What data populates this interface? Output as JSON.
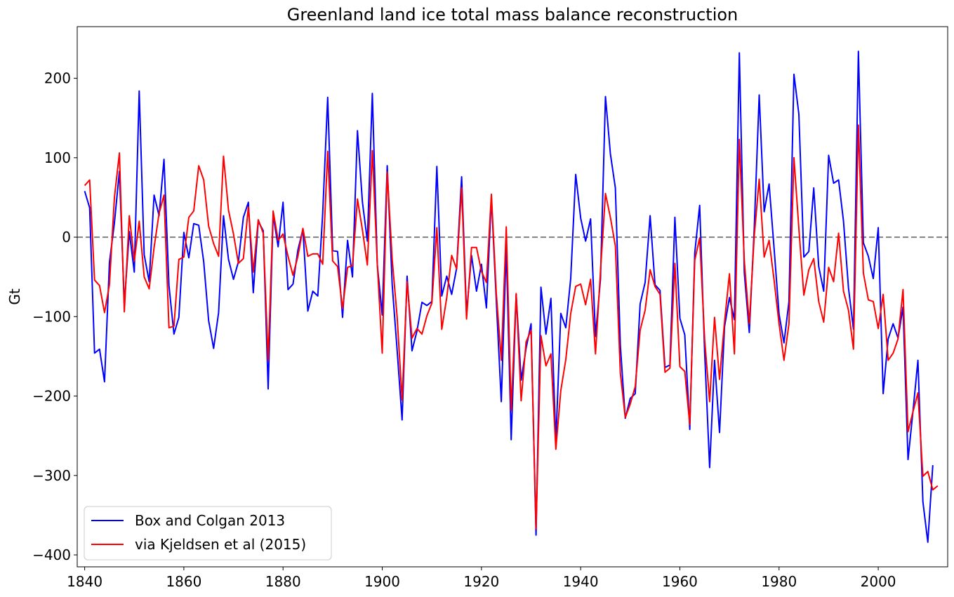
{
  "chart_data": {
    "type": "line",
    "title": "Greenland land ice total mass balance reconstruction",
    "xlabel": "",
    "ylabel": "Gt",
    "xlim": [
      1838.5,
      2014
    ],
    "ylim": [
      -415,
      265
    ],
    "xticks": [
      1840,
      1860,
      1880,
      1900,
      1920,
      1940,
      1960,
      1980,
      2000
    ],
    "yticks": [
      200,
      100,
      0,
      -100,
      -200,
      -300,
      -400
    ],
    "ytick_labels": [
      "200",
      "100",
      "0",
      "−100",
      "−200",
      "−300",
      "−400"
    ],
    "grid": false,
    "legend": "lower-left",
    "reference_line": {
      "y": 0,
      "style": "dashed",
      "color": "#808080"
    },
    "series": [
      {
        "name": "Box and Colgan 2013",
        "color": "#0000ff",
        "x_start": 1840,
        "values": [
          58,
          37,
          -146,
          -141,
          -182,
          -32,
          18,
          83,
          -85,
          7,
          -44,
          184,
          -22,
          -56,
          53,
          27,
          98,
          -61,
          -122,
          -101,
          6,
          -26,
          17,
          15,
          -31,
          -105,
          -140,
          -95,
          27,
          -28,
          -53,
          -31,
          25,
          44,
          -70,
          20,
          8,
          -191,
          28,
          -12,
          44,
          -66,
          -59,
          -16,
          10,
          -93,
          -68,
          -74,
          30,
          176,
          -17,
          -18,
          -101,
          -4,
          -50,
          134,
          44,
          -5,
          181,
          -35,
          -98,
          90,
          -60,
          -142,
          -230,
          -49,
          -143,
          -118,
          -82,
          -86,
          -81,
          89,
          -74,
          -49,
          -72,
          -39,
          76,
          -96,
          -23,
          -68,
          -34,
          -89,
          50,
          -80,
          -207,
          -12,
          -255,
          -72,
          -180,
          -140,
          -109,
          -375,
          -63,
          -122,
          -77,
          -258,
          -96,
          -114,
          -52,
          79,
          24,
          -5,
          23,
          -125,
          -53,
          177,
          105,
          62,
          -136,
          -228,
          -203,
          -197,
          -84,
          -57,
          27,
          -60,
          -67,
          -164,
          -161,
          25,
          -102,
          -123,
          -242,
          -20,
          40,
          -145,
          -290,
          -155,
          -246,
          -113,
          -76,
          -104,
          232,
          -45,
          -120,
          10,
          179,
          32,
          67,
          -14,
          -97,
          -133,
          -81,
          205,
          155,
          -25,
          -18,
          62,
          -37,
          -68,
          103,
          68,
          72,
          20,
          -64,
          -116,
          234,
          -7,
          -24,
          -52,
          12,
          -197,
          -128,
          -109,
          -127,
          -88,
          -280,
          -220,
          -155,
          -333,
          -384,
          -287
        ]
      },
      {
        "name": "via Kjeldsen et al (2015)",
        "color": "#ff0000",
        "x_start": 1840,
        "values": [
          65,
          72,
          -54,
          -61,
          -95,
          -60,
          50,
          106,
          -94,
          27,
          -30,
          20,
          -50,
          -65,
          -13,
          30,
          53,
          -114,
          -112,
          -28,
          -25,
          25,
          33,
          90,
          72,
          14,
          -8,
          -24,
          102,
          34,
          4,
          -33,
          -27,
          38,
          -44,
          22,
          5,
          -155,
          33,
          -4,
          4,
          -24,
          -48,
          -24,
          11,
          -24,
          -21,
          -21,
          -34,
          108,
          -30,
          -37,
          -90,
          -38,
          -36,
          48,
          9,
          -35,
          109,
          -34,
          -146,
          82,
          -28,
          -100,
          -205,
          -56,
          -127,
          -115,
          -122,
          -99,
          -83,
          12,
          -116,
          -76,
          -23,
          -40,
          62,
          -103,
          -13,
          -13,
          -43,
          -57,
          54,
          -71,
          -155,
          13,
          -218,
          -71,
          -206,
          -132,
          -117,
          -367,
          -124,
          -162,
          -147,
          -267,
          -193,
          -154,
          -96,
          -62,
          -59,
          -85,
          -53,
          -147,
          -43,
          55,
          25,
          -11,
          -171,
          -227,
          -210,
          -188,
          -117,
          -92,
          -41,
          -62,
          -72,
          -170,
          -165,
          -33,
          -163,
          -169,
          -236,
          -29,
          -1,
          -129,
          -207,
          -101,
          -179,
          -107,
          -46,
          -147,
          123,
          -30,
          -109,
          1,
          73,
          -25,
          -4,
          -54,
          -109,
          -155,
          -109,
          100,
          11,
          -73,
          -41,
          -27,
          -81,
          -107,
          -38,
          -56,
          5,
          -68,
          -92,
          -141,
          141,
          -45,
          -79,
          -81,
          -115,
          -72,
          -155,
          -146,
          -128,
          -66,
          -245,
          -220,
          -196,
          -301,
          -295,
          -318,
          -313
        ]
      }
    ]
  }
}
